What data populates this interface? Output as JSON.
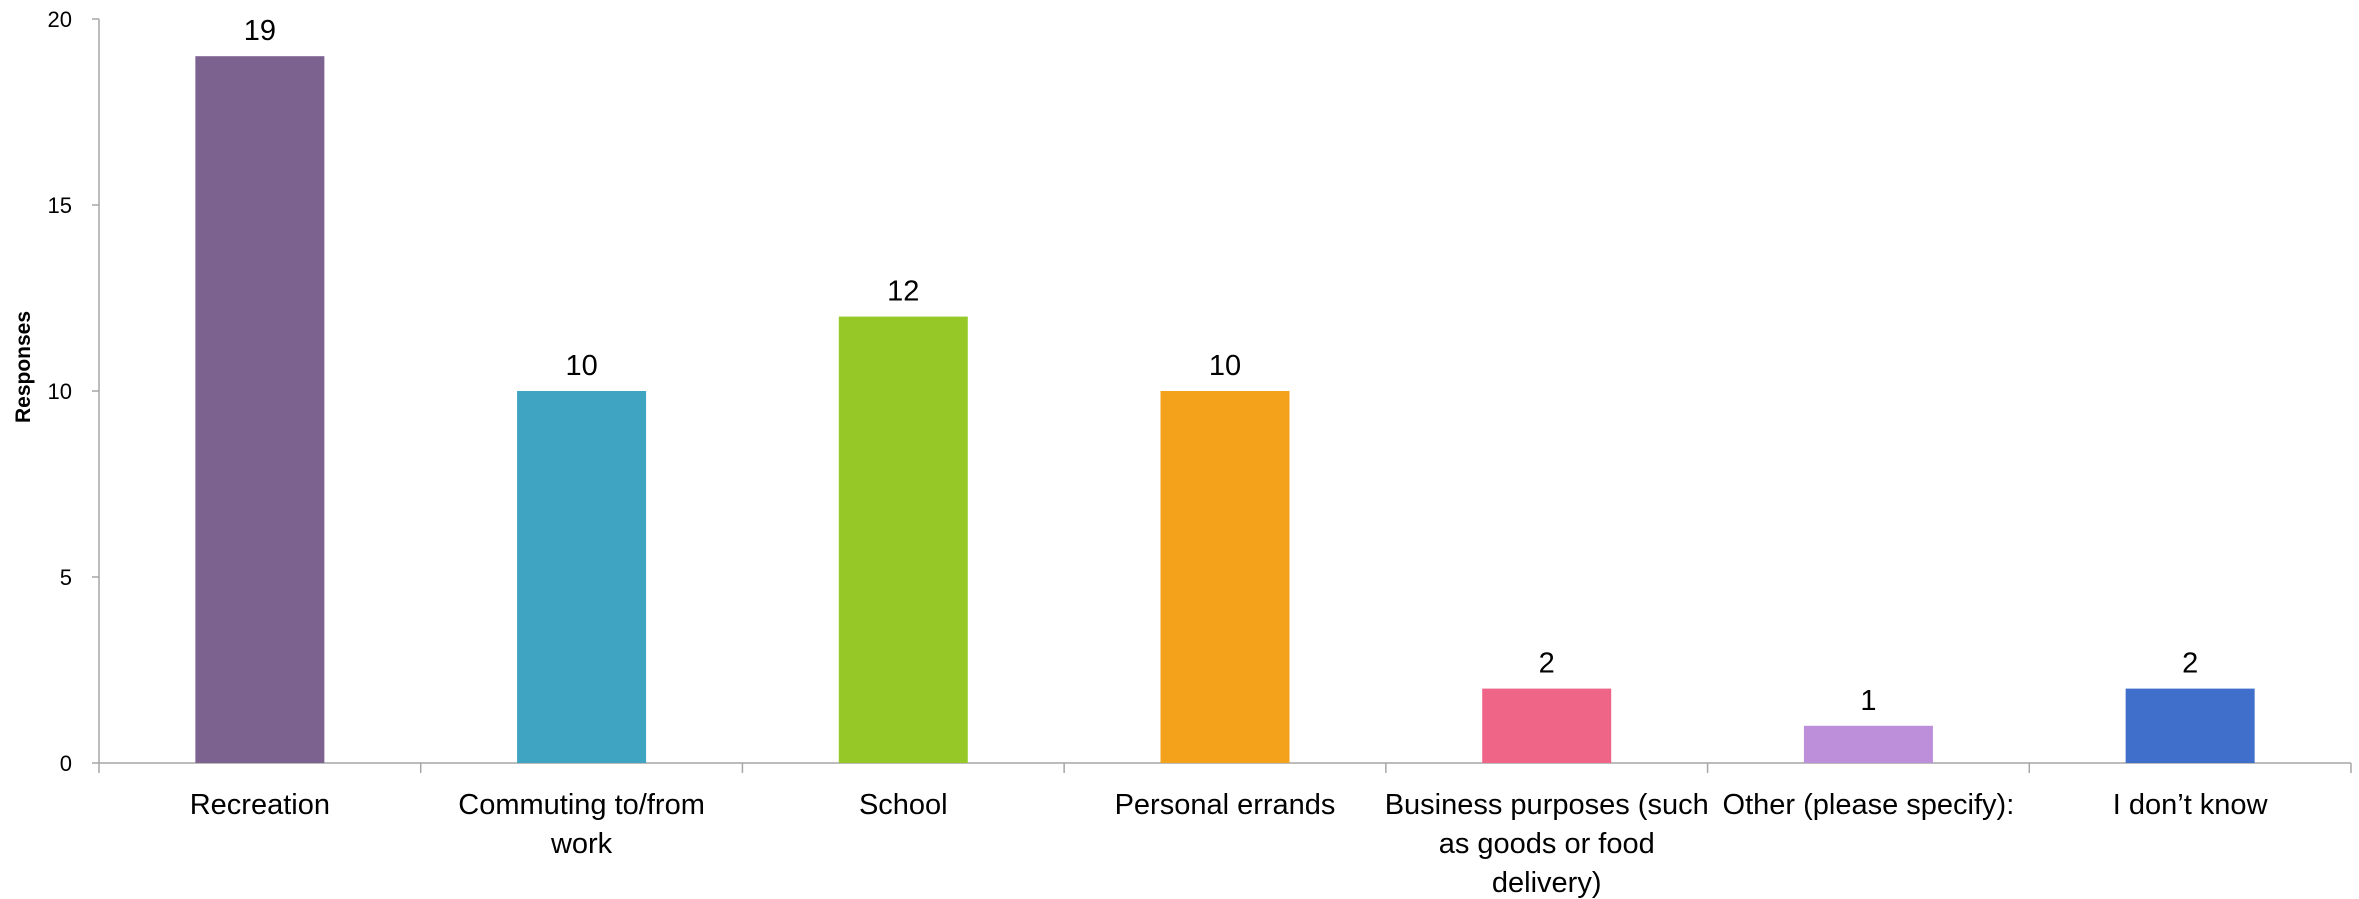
{
  "chart_data": {
    "type": "bar",
    "ylabel": "Responses",
    "xlabel": "",
    "ylim": [
      0,
      20
    ],
    "yticks": [
      0,
      5,
      10,
      15,
      20
    ],
    "grid": false,
    "legend": "none",
    "categories": [
      "Recreation",
      "Commuting to/from work",
      "School",
      "Personal errands",
      "Business purposes (such as goods or food delivery)",
      "Other (please specify):",
      "I don’t know"
    ],
    "category_lines": [
      [
        "Recreation"
      ],
      [
        "Commuting to/from",
        "work"
      ],
      [
        "School"
      ],
      [
        "Personal errands"
      ],
      [
        "Business purposes (such",
        "as goods or food",
        "delivery)"
      ],
      [
        "Other (please specify):"
      ],
      [
        "I don’t know"
      ]
    ],
    "values": [
      19,
      10,
      12,
      10,
      2,
      1,
      2
    ],
    "colors": [
      "#7B628F",
      "#3FA4C1",
      "#96C828",
      "#F4A21C",
      "#EF6588",
      "#BD8EDA",
      "#3F6FCB"
    ],
    "axis_color": "#A6A6A6"
  }
}
